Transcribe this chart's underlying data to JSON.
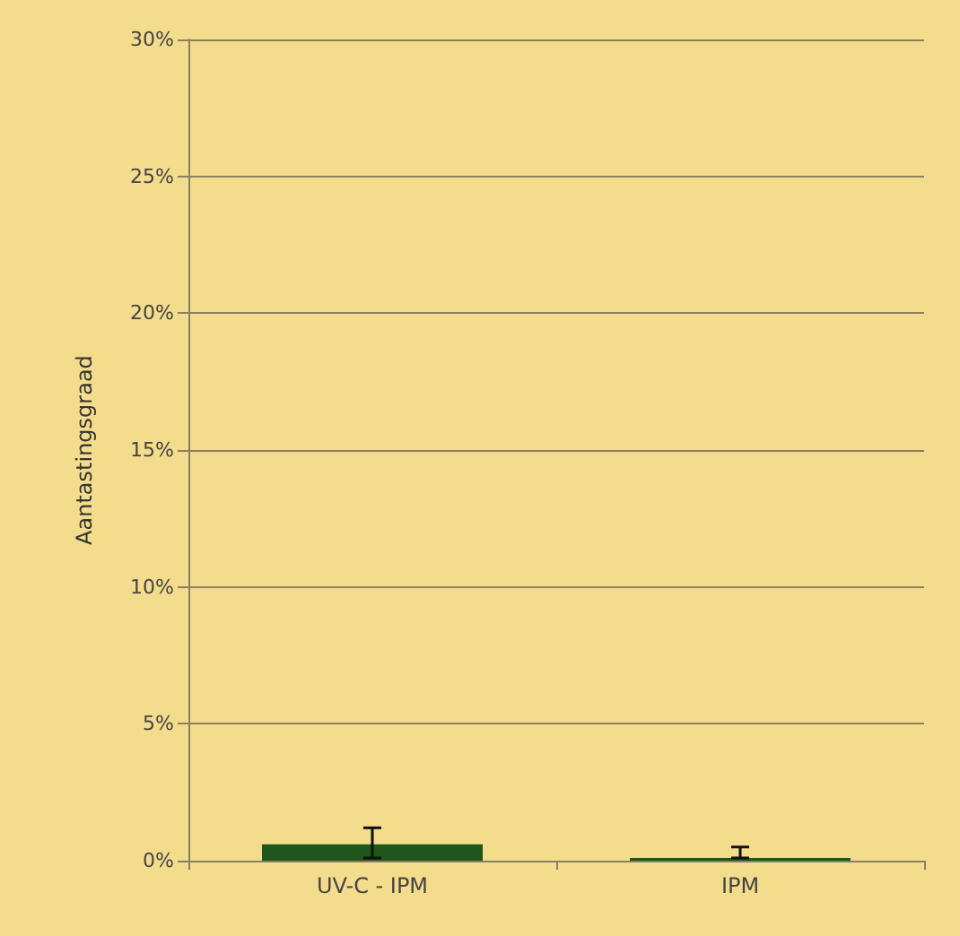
{
  "chart_data": {
    "type": "bar",
    "ylabel": "Aantastingsgraad",
    "categories": [
      "UV-C - IPM",
      "IPM"
    ],
    "values": [
      0.6,
      0.1
    ],
    "color": "#1f561c",
    "errors": [
      [
        0.1,
        1.2
      ],
      [
        0.1,
        0.5
      ]
    ],
    "ylim": [
      0,
      30
    ],
    "yticks": [
      {
        "value": 0,
        "label": "0%"
      },
      {
        "value": 5,
        "label": "5%"
      },
      {
        "value": 10,
        "label": "10%"
      },
      {
        "value": 15,
        "label": "15%"
      },
      {
        "value": 20,
        "label": "20%"
      },
      {
        "value": 25,
        "label": "25%"
      },
      {
        "value": 30,
        "label": "30%"
      }
    ],
    "grid": "y"
  }
}
